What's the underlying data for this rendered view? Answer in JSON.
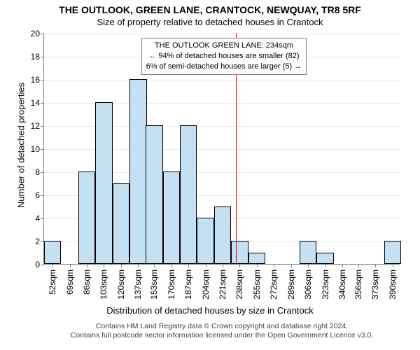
{
  "chart": {
    "type": "histogram",
    "title": "THE OUTLOOK, GREEN LANE, CRANTOCK, NEWQUAY, TR8 5RF",
    "subtitle": "Size of property relative to detached houses in Crantock",
    "xlabel": "Distribution of detached houses by size in Crantock",
    "ylabel": "Number of detached properties",
    "title_fontsize": 14,
    "subtitle_fontsize": 13,
    "label_fontsize": 13,
    "tick_fontsize": 12,
    "background_color": "#ffffff",
    "grid_color": "#e9e9e9",
    "axis_color": "#808080",
    "bar_fill": "#c3e1f2",
    "bar_border": "#000000",
    "bar_border_width": 0.5,
    "ref_line_color": "#ff0000",
    "ref_line_width": 1,
    "ylim": [
      0,
      20
    ],
    "ytick_step": 2,
    "xticks": [
      52,
      69,
      86,
      103,
      120,
      137,
      153,
      170,
      187,
      204,
      221,
      238,
      255,
      272,
      289,
      306,
      323,
      340,
      356,
      373,
      390
    ],
    "xtick_unit": "sqm",
    "values": [
      2,
      0,
      8,
      14,
      7,
      16,
      12,
      8,
      12,
      4,
      5,
      2,
      1,
      0,
      0,
      2,
      1,
      0,
      0,
      0,
      2
    ],
    "ref_value": 234,
    "annotation": {
      "line1": "THE OUTLOOK GREEN LANE: 234sqm",
      "line2": "← 94% of detached houses are smaller (82)",
      "line3": "6% of semi-detached houses are larger (5) →",
      "fontsize": 11,
      "border_color": "#808080",
      "bg_color": "#ffffff"
    },
    "footer": {
      "line1": "Contains HM Land Registry data © Crown copyright and database right 2024.",
      "line2": "Contains full postcode sector information licensed under the Open Government Licence v3.0.",
      "fontsize": 10.5,
      "color": "#444444"
    }
  }
}
